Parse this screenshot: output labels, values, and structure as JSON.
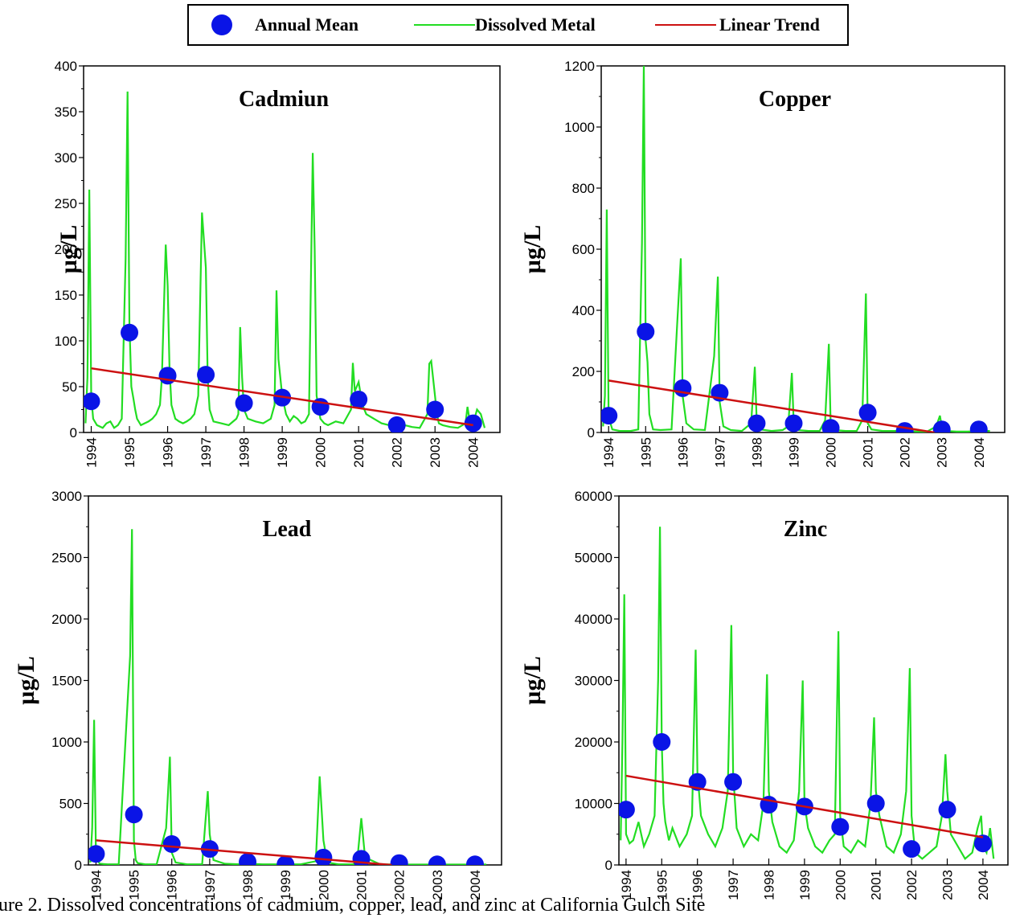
{
  "legend": {
    "annual_mean": "Annual Mean",
    "dissolved_metal": "Dissolved Metal",
    "linear_trend": "Linear Trend"
  },
  "colors": {
    "annual_mean": "#0a14e6",
    "dissolved_metal": "#22dd22",
    "linear_trend": "#cc1111"
  },
  "caption": "ure 2.   Dissolved concentrations of cadmium, copper, lead, and zinc at California Gulch Site",
  "chart_data": [
    {
      "id": "cadmium",
      "type": "line",
      "title": "Cadmiun",
      "ylabel": "µg/L",
      "ylim": [
        0,
        400
      ],
      "yticks": [
        0,
        50,
        100,
        150,
        200,
        250,
        300,
        350,
        400
      ],
      "xlim": [
        1993.8,
        2004.7
      ],
      "xticks": [
        "1994",
        "1995",
        "1996",
        "1997",
        "1998",
        "1999",
        "2000",
        "2001",
        "2002",
        "2003",
        "2004"
      ],
      "annual_mean": {
        "x": [
          1994.0,
          1995.0,
          1996.0,
          1997.0,
          1998.0,
          1999.0,
          2000.0,
          2001.0,
          2002.0,
          2003.0,
          2004.0
        ],
        "y": [
          34,
          109,
          62,
          63,
          32,
          38,
          28,
          36,
          8,
          25,
          10
        ]
      },
      "linear_trend": {
        "x": [
          1994.0,
          2004.0
        ],
        "y": [
          70,
          8
        ]
      },
      "dissolved_metal": {
        "x": [
          1993.85,
          1993.9,
          1993.95,
          1994.0,
          1994.05,
          1994.15,
          1994.3,
          1994.4,
          1994.5,
          1994.6,
          1994.7,
          1994.8,
          1994.9,
          1994.95,
          1995.0,
          1995.05,
          1995.1,
          1995.15,
          1995.2,
          1995.3,
          1995.4,
          1995.5,
          1995.6,
          1995.7,
          1995.8,
          1995.85,
          1995.95,
          1996.0,
          1996.05,
          1996.1,
          1996.2,
          1996.3,
          1996.4,
          1996.5,
          1996.6,
          1996.7,
          1996.8,
          1996.9,
          1997.0,
          1997.05,
          1997.1,
          1997.2,
          1997.4,
          1997.6,
          1997.8,
          1997.85,
          1997.9,
          1997.95,
          1998.0,
          1998.1,
          1998.3,
          1998.5,
          1998.7,
          1998.8,
          1998.85,
          1998.9,
          1999.0,
          1999.1,
          1999.2,
          1999.3,
          1999.4,
          1999.5,
          1999.6,
          1999.7,
          1999.8,
          1999.85,
          1999.9,
          2000.0,
          2000.1,
          2000.2,
          2000.4,
          2000.6,
          2000.8,
          2000.85,
          2000.9,
          2001.0,
          2001.1,
          2001.2,
          2001.4,
          2001.6,
          2001.8,
          2002.0,
          2002.2,
          2002.4,
          2002.6,
          2002.8,
          2002.85,
          2002.9,
          2003.0,
          2003.05,
          2003.1,
          2003.2,
          2003.4,
          2003.6,
          2003.8,
          2003.85,
          2003.9,
          2004.0,
          2004.1,
          2004.2,
          2004.3
        ],
        "y": [
          10,
          60,
          265,
          40,
          15,
          8,
          5,
          10,
          12,
          5,
          8,
          15,
          190,
          372,
          120,
          50,
          38,
          25,
          15,
          8,
          10,
          12,
          15,
          20,
          30,
          60,
          205,
          160,
          70,
          30,
          15,
          12,
          10,
          12,
          15,
          20,
          40,
          240,
          180,
          60,
          25,
          12,
          10,
          8,
          15,
          20,
          115,
          60,
          25,
          15,
          12,
          10,
          15,
          30,
          155,
          80,
          40,
          20,
          12,
          18,
          15,
          10,
          12,
          20,
          305,
          200,
          40,
          15,
          10,
          8,
          12,
          10,
          25,
          76,
          45,
          55,
          30,
          20,
          15,
          10,
          8,
          6,
          8,
          6,
          5,
          20,
          75,
          78,
          40,
          20,
          10,
          8,
          6,
          5,
          10,
          28,
          15,
          10,
          25,
          20,
          5
        ]
      }
    },
    {
      "id": "copper",
      "type": "line",
      "title": "Copper",
      "ylabel": "µg/L",
      "ylim": [
        0,
        1200
      ],
      "yticks": [
        0,
        200,
        400,
        600,
        800,
        1000,
        1200
      ],
      "xlim": [
        1993.8,
        2004.7
      ],
      "xticks": [
        "1994",
        "1995",
        "1996",
        "1997",
        "1998",
        "1999",
        "2000",
        "2001",
        "2002",
        "2003",
        "2004"
      ],
      "annual_mean": {
        "x": [
          1994.0,
          1995.0,
          1996.0,
          1997.0,
          1998.0,
          1999.0,
          2000.0,
          2001.0,
          2002.0,
          2003.0,
          2004.0
        ],
        "y": [
          55,
          330,
          145,
          130,
          30,
          30,
          15,
          65,
          5,
          10,
          10
        ]
      },
      "linear_trend": {
        "x": [
          1994.0,
          2002.8
        ],
        "y": [
          170,
          0
        ]
      },
      "dissolved_metal": {
        "x": [
          1993.85,
          1993.9,
          1993.95,
          1994.0,
          1994.1,
          1994.3,
          1994.6,
          1994.8,
          1994.9,
          1994.95,
          1995.0,
          1995.05,
          1995.1,
          1995.2,
          1995.4,
          1995.7,
          1995.85,
          1995.95,
          1996.0,
          1996.1,
          1996.3,
          1996.6,
          1996.85,
          1996.95,
          1997.0,
          1997.1,
          1997.3,
          1997.6,
          1997.85,
          1997.95,
          1998.0,
          1998.1,
          1998.4,
          1998.7,
          1998.85,
          1998.95,
          1999.0,
          1999.1,
          1999.4,
          1999.7,
          1999.85,
          1999.95,
          2000.0,
          2000.1,
          2000.4,
          2000.7,
          2000.85,
          2000.95,
          2001.0,
          2001.1,
          2001.4,
          2001.7,
          2002.0,
          2002.3,
          2002.6,
          2002.85,
          2002.95,
          2003.0,
          2003.1,
          2003.4,
          2003.7,
          2004.0,
          2004.3
        ],
        "y": [
          20,
          120,
          730,
          50,
          10,
          5,
          5,
          10,
          620,
          1200,
          300,
          230,
          60,
          10,
          8,
          10,
          350,
          570,
          120,
          30,
          10,
          8,
          250,
          510,
          100,
          20,
          8,
          5,
          30,
          215,
          40,
          10,
          5,
          8,
          20,
          195,
          30,
          8,
          5,
          5,
          40,
          290,
          20,
          8,
          5,
          5,
          40,
          455,
          30,
          10,
          5,
          5,
          5,
          3,
          3,
          20,
          55,
          20,
          5,
          3,
          3,
          5,
          5
        ]
      }
    },
    {
      "id": "lead",
      "type": "line",
      "title": "Lead",
      "ylabel": "µg/L",
      "ylim": [
        0,
        3000
      ],
      "yticks": [
        0,
        500,
        1000,
        1500,
        2000,
        2500,
        3000
      ],
      "xlim": [
        1993.8,
        2004.7
      ],
      "xticks": [
        "1994",
        "1995",
        "1996",
        "1997",
        "1998",
        "1999",
        "2000",
        "2001",
        "2002",
        "2003",
        "2004"
      ],
      "annual_mean": {
        "x": [
          1994.0,
          1995.0,
          1996.0,
          1997.0,
          1998.0,
          1999.0,
          2000.0,
          2001.0,
          2002.0,
          2003.0,
          2004.0
        ],
        "y": [
          90,
          410,
          170,
          130,
          25,
          5,
          60,
          50,
          15,
          5,
          5
        ]
      },
      "linear_trend": {
        "x": [
          1994.0,
          2001.8
        ],
        "y": [
          200,
          0
        ]
      },
      "dissolved_metal": {
        "x": [
          1993.85,
          1993.9,
          1993.95,
          1994.0,
          1994.1,
          1994.3,
          1994.6,
          1994.9,
          1994.95,
          1995.0,
          1995.05,
          1995.1,
          1995.3,
          1995.6,
          1995.85,
          1995.95,
          1996.0,
          1996.1,
          1996.4,
          1996.8,
          1996.95,
          1997.0,
          1997.1,
          1997.4,
          1997.8,
          1998.0,
          1998.4,
          1998.8,
          1999.0,
          1999.4,
          1999.8,
          1999.9,
          2000.0,
          2000.1,
          2000.4,
          2000.8,
          2000.9,
          2001.0,
          2001.1,
          2001.5,
          2002.0,
          2002.5,
          2003.0,
          2003.5,
          2004.0,
          2004.3
        ],
        "y": [
          20,
          300,
          1180,
          60,
          10,
          5,
          5,
          1700,
          2730,
          200,
          40,
          15,
          5,
          5,
          300,
          880,
          100,
          20,
          5,
          5,
          600,
          250,
          40,
          10,
          5,
          10,
          5,
          5,
          5,
          5,
          30,
          720,
          200,
          20,
          5,
          5,
          60,
          380,
          60,
          5,
          3,
          3,
          3,
          3,
          3,
          3
        ]
      }
    },
    {
      "id": "zinc",
      "type": "line",
      "title": "Zinc",
      "ylabel": "µg/L",
      "ylim": [
        0,
        60000
      ],
      "yticks": [
        0,
        10000,
        20000,
        30000,
        40000,
        50000,
        60000
      ],
      "xlim": [
        1993.8,
        2004.7
      ],
      "xticks": [
        "1994",
        "1995",
        "1996",
        "1997",
        "1998",
        "1999",
        "2000",
        "2001",
        "2002",
        "2003",
        "2004"
      ],
      "annual_mean": {
        "x": [
          1994.0,
          1995.0,
          1996.0,
          1997.0,
          1998.0,
          1999.0,
          2000.0,
          2001.0,
          2002.0,
          2003.0,
          2004.0
        ],
        "y": [
          9000,
          20000,
          13500,
          13500,
          9800,
          9500,
          6200,
          10000,
          2600,
          9000,
          3500
        ]
      },
      "linear_trend": {
        "x": [
          1994.0,
          2004.0
        ],
        "y": [
          14500,
          4500
        ]
      },
      "dissolved_metal": {
        "x": [
          1993.85,
          1993.9,
          1993.95,
          1994.0,
          1994.1,
          1994.2,
          1994.35,
          1994.5,
          1994.65,
          1994.8,
          1994.9,
          1994.95,
          1995.0,
          1995.05,
          1995.1,
          1995.2,
          1995.3,
          1995.5,
          1995.7,
          1995.85,
          1995.95,
          1996.0,
          1996.1,
          1996.3,
          1996.5,
          1996.7,
          1996.85,
          1996.95,
          1997.0,
          1997.1,
          1997.3,
          1997.5,
          1997.7,
          1997.85,
          1997.95,
          1998.0,
          1998.1,
          1998.3,
          1998.5,
          1998.7,
          1998.85,
          1998.95,
          1999.0,
          1999.1,
          1999.3,
          1999.5,
          1999.7,
          1999.85,
          1999.95,
          2000.0,
          2000.1,
          2000.3,
          2000.5,
          2000.7,
          2000.85,
          2000.95,
          2001.0,
          2001.1,
          2001.3,
          2001.5,
          2001.7,
          2001.85,
          2001.95,
          2002.0,
          2002.1,
          2002.3,
          2002.5,
          2002.7,
          2002.85,
          2002.95,
          2003.0,
          2003.1,
          2003.3,
          2003.5,
          2003.7,
          2003.85,
          2003.95,
          2004.0,
          2004.1,
          2004.2,
          2004.3
        ],
        "y": [
          4000,
          20000,
          44000,
          5000,
          3500,
          4000,
          7000,
          3000,
          5000,
          8000,
          30000,
          55000,
          20000,
          10000,
          7000,
          4000,
          6000,
          3000,
          5000,
          8000,
          35000,
          15000,
          8000,
          5000,
          3000,
          6000,
          12000,
          39000,
          15000,
          6000,
          3000,
          5000,
          4000,
          10000,
          31000,
          12000,
          7000,
          3000,
          2000,
          4000,
          12000,
          30000,
          10000,
          6000,
          3000,
          2000,
          4000,
          5000,
          38000,
          8000,
          3000,
          2000,
          4000,
          3000,
          10000,
          24000,
          12000,
          8000,
          3000,
          2000,
          5000,
          12000,
          32000,
          8000,
          2000,
          1000,
          2000,
          3000,
          8000,
          18000,
          12000,
          5000,
          3000,
          1000,
          2000,
          6000,
          8000,
          3000,
          2000,
          6000,
          1000
        ]
      }
    }
  ]
}
